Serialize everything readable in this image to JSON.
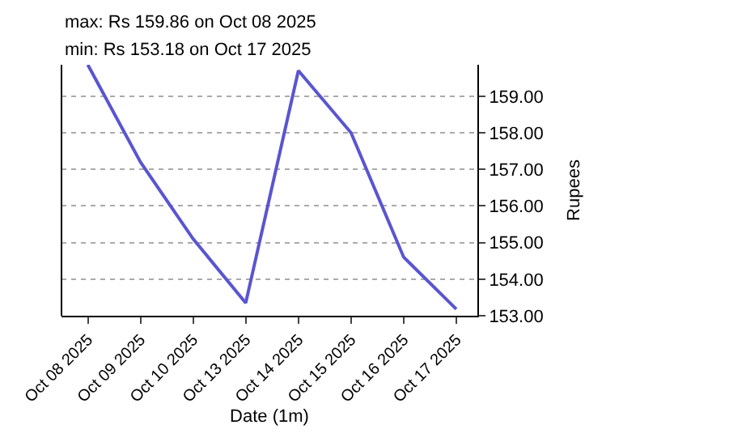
{
  "chart_data": {
    "type": "line",
    "title": "max: Rs 159.86 on Oct 08 2025",
    "subtitle": "min: Rs 153.18 on Oct 17 2025",
    "xlabel": "Date (1m)",
    "ylabel": "Rupees",
    "categories": [
      "Oct 08 2025",
      "Oct 09 2025",
      "Oct 10 2025",
      "Oct 13 2025",
      "Oct 14 2025",
      "Oct 15 2025",
      "Oct 16 2025",
      "Oct 17 2025"
    ],
    "series": [
      {
        "color": "#5a55d0",
        "values": [
          159.86,
          157.2,
          155.1,
          153.35,
          159.7,
          158.0,
          154.6,
          153.18
        ]
      }
    ],
    "ylim": [
      153,
      159.86
    ],
    "yticks": [
      {
        "value": 153,
        "label": "153.00"
      },
      {
        "value": 154,
        "label": "154.00"
      },
      {
        "value": 155,
        "label": "155.00"
      },
      {
        "value": 156,
        "label": "156.00"
      },
      {
        "value": 157,
        "label": "157.00"
      },
      {
        "value": 158,
        "label": "158.00"
      },
      {
        "value": 159,
        "label": "159.00"
      }
    ],
    "grid": "y",
    "marker": "none",
    "line_style": "solid"
  }
}
